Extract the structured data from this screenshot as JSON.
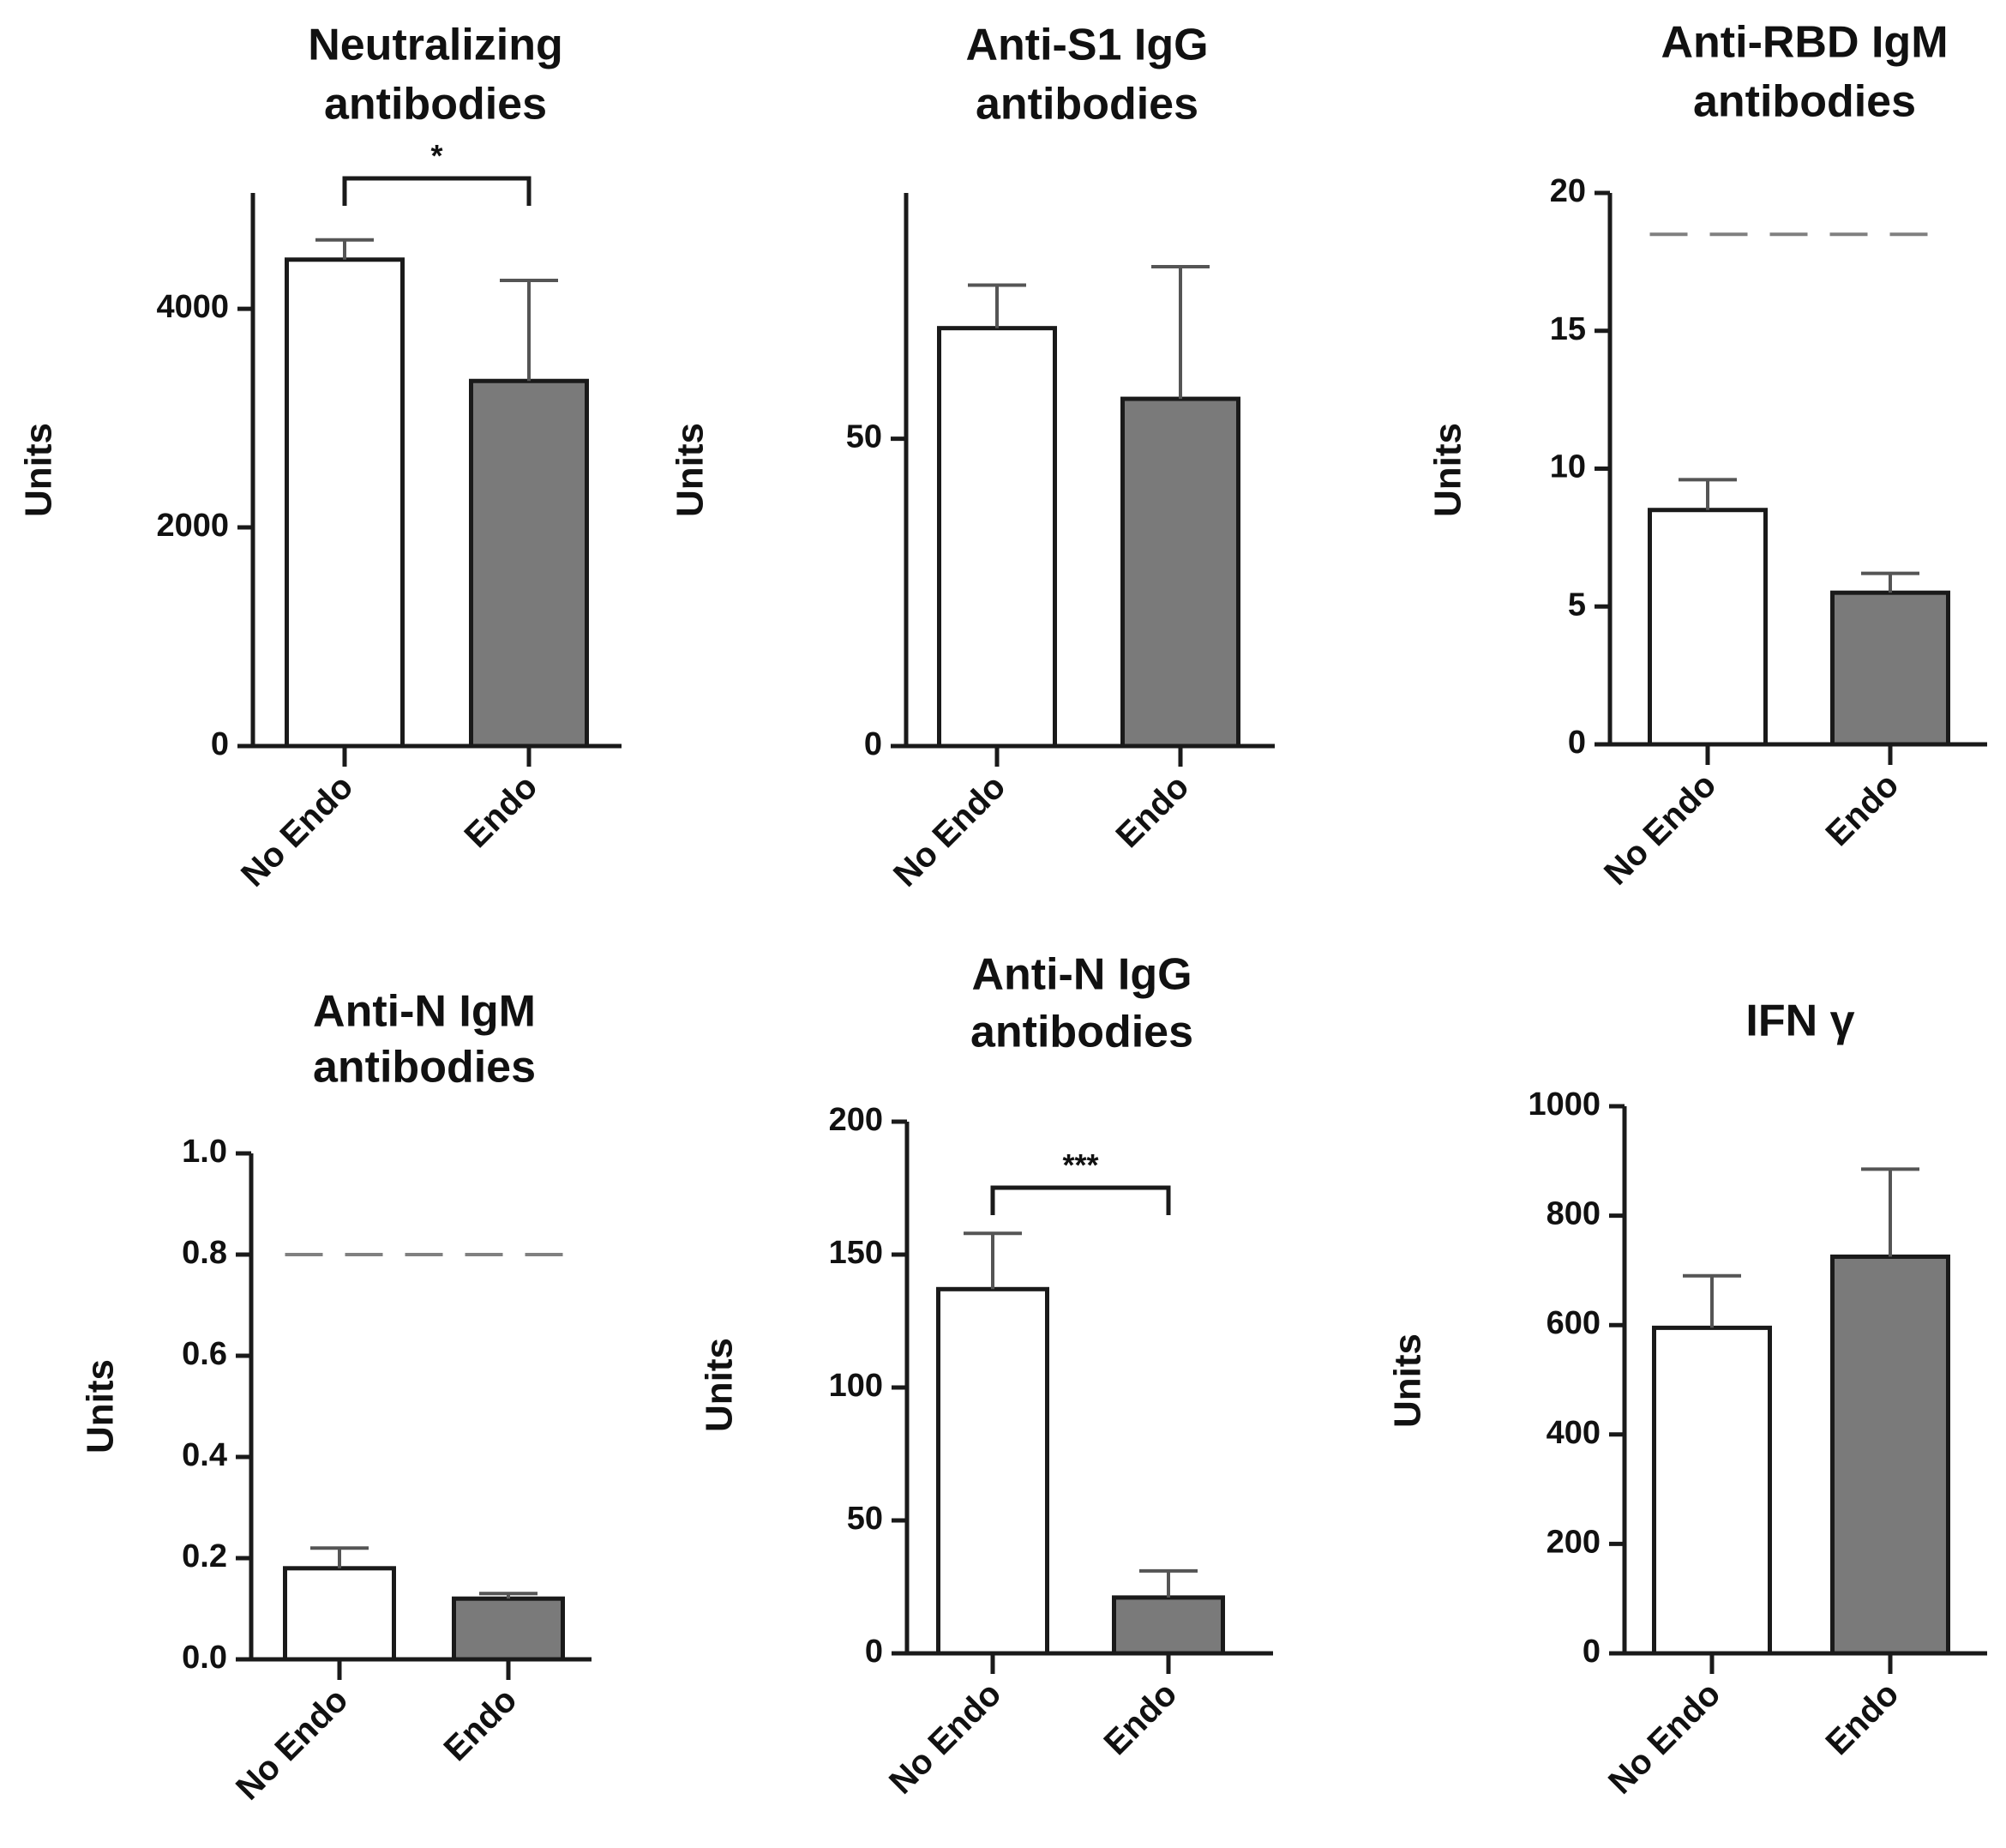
{
  "figure": {
    "y_axis_label": "Units",
    "groups": [
      "No Endo",
      "Endo"
    ]
  },
  "colors": {
    "no_endo_fill": "#ffffff",
    "endo_fill": "#7a7a7a",
    "axis": "#1a1a1a",
    "dashed_line": "#808080"
  },
  "chart_data": [
    {
      "type": "bar",
      "title": [
        "Neutralizing",
        "antibodies"
      ],
      "categories": [
        "No Endo",
        "Endo"
      ],
      "values": [
        4450,
        3340
      ],
      "error_upper": [
        4630,
        4260
      ],
      "ylabel": "Units",
      "ylim": [
        0,
        5060
      ],
      "yticks": [
        0,
        2000,
        4000
      ],
      "ytick_labels": [
        "0",
        "2000",
        "4000"
      ],
      "significance": {
        "label": "*",
        "between": [
          0,
          1
        ]
      },
      "threshold": null
    },
    {
      "type": "bar",
      "title": [
        "Anti-S1 IgG",
        "antibodies"
      ],
      "categories": [
        "No Endo",
        "Endo"
      ],
      "values": [
        68,
        56.5
      ],
      "error_upper": [
        75,
        78
      ],
      "ylabel": "Units",
      "ylim": [
        0,
        90
      ],
      "yticks": [
        0,
        50
      ],
      "ytick_labels": [
        "0",
        "50"
      ],
      "significance": null,
      "threshold": null
    },
    {
      "type": "bar",
      "title": [
        "Anti-RBD IgM",
        "antibodies"
      ],
      "categories": [
        "No Endo",
        "Endo"
      ],
      "values": [
        8.5,
        5.5
      ],
      "error_upper": [
        9.6,
        6.2
      ],
      "ylabel": "Units",
      "ylim": [
        0,
        20
      ],
      "yticks": [
        0,
        5,
        10,
        15,
        20
      ],
      "ytick_labels": [
        "0",
        "5",
        "10",
        "15",
        "20"
      ],
      "significance": null,
      "threshold": 18.5
    },
    {
      "type": "bar",
      "title": [
        "Anti-N IgM",
        "antibodies"
      ],
      "categories": [
        "No Endo",
        "Endo"
      ],
      "values": [
        0.18,
        0.12
      ],
      "error_upper": [
        0.22,
        0.13
      ],
      "ylabel": "Units",
      "ylim": [
        0,
        1.0
      ],
      "yticks": [
        0,
        0.2,
        0.4,
        0.6,
        0.8,
        1.0
      ],
      "ytick_labels": [
        "0.0",
        "0.2",
        "0.4",
        "0.6",
        "0.8",
        "1.0"
      ],
      "significance": null,
      "threshold": 0.8
    },
    {
      "type": "bar",
      "title": [
        "Anti-N IgG",
        "antibodies"
      ],
      "categories": [
        "No Endo",
        "Endo"
      ],
      "values": [
        137,
        21
      ],
      "error_upper": [
        158,
        31
      ],
      "ylabel": "Units",
      "ylim": [
        0,
        200
      ],
      "yticks": [
        0,
        50,
        100,
        150,
        200
      ],
      "ytick_labels": [
        "0",
        "50",
        "100",
        "150",
        "200"
      ],
      "significance": {
        "label": "***",
        "between": [
          0,
          1
        ]
      },
      "threshold": null
    },
    {
      "type": "bar",
      "title": [
        "IFN γ"
      ],
      "categories": [
        "No Endo",
        "Endo"
      ],
      "values": [
        595,
        725
      ],
      "error_upper": [
        690,
        885
      ],
      "ylabel": "Units",
      "ylim": [
        0,
        1000
      ],
      "yticks": [
        0,
        200,
        400,
        600,
        800,
        1000
      ],
      "ytick_labels": [
        "0",
        "200",
        "400",
        "600",
        "800",
        "1000"
      ],
      "significance": null,
      "threshold": null
    }
  ]
}
